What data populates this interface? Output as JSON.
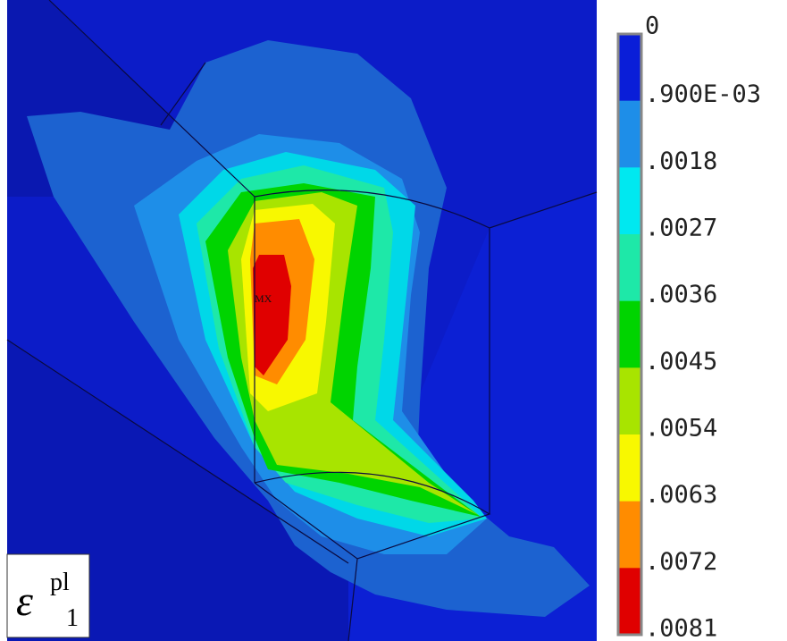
{
  "legend": {
    "labels": [
      "0",
      ".900E-03",
      ".0018",
      ".0027",
      ".0036",
      ".0045",
      ".0054",
      ".0063",
      ".0072",
      ".0081"
    ],
    "colors": [
      "#0a1ed8",
      "#1e8ee8",
      "#00e8f0",
      "#1ee8a8",
      "#00d400",
      "#a8e400",
      "#f8f800",
      "#ff8c00",
      "#e00000"
    ]
  },
  "marker": "MX",
  "symbol": {
    "base": "ε",
    "sup": "pl",
    "sub": "1"
  }
}
